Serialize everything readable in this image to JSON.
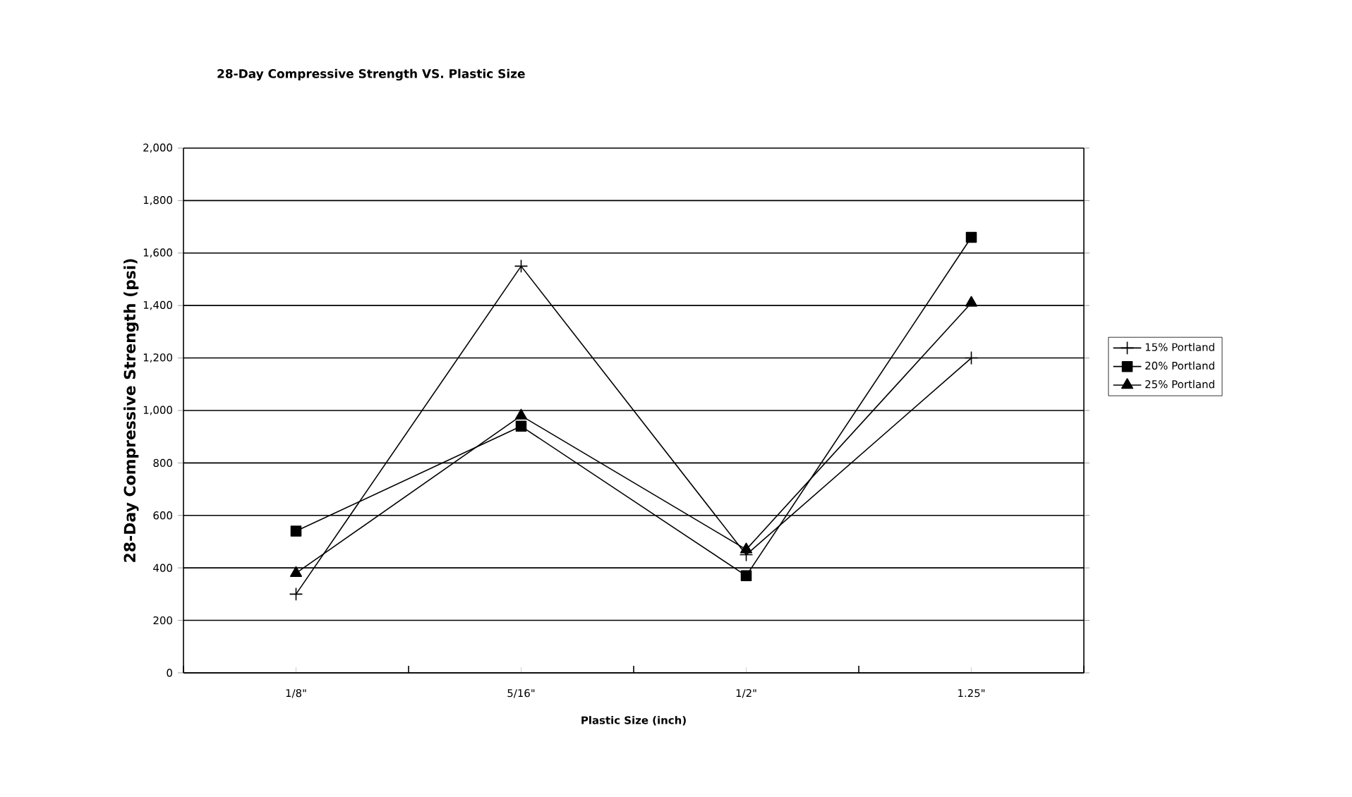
{
  "chart_data": {
    "type": "line",
    "title": "28-Day Compressive Strength VS. Plastic Size",
    "xlabel": "Plastic Size (inch)",
    "ylabel": "28-Day Compressive Strength (psi)",
    "categories": [
      "1/8\"",
      "5/16\"",
      "1/2\"",
      "1.25\""
    ],
    "series": [
      {
        "name": "15% Portland",
        "color": "#000000",
        "marker": "cross",
        "values": [
          300,
          1550,
          450,
          1200
        ]
      },
      {
        "name": "20% Portland",
        "color": "#000000",
        "marker": "square",
        "values": [
          540,
          940,
          370,
          1660
        ]
      },
      {
        "name": "25% Portland",
        "color": "#000000",
        "marker": "triangle",
        "values": [
          380,
          980,
          470,
          1410
        ]
      }
    ],
    "ylim": [
      0,
      2000
    ],
    "yticks": [
      0,
      {
        "value": 200,
        "label": "200"
      },
      {
        "value": 400,
        "label": "400"
      },
      {
        "value": 600,
        "label": "600"
      },
      {
        "value": 800,
        "label": "800"
      },
      {
        "value": 1000,
        "label": "1,000"
      },
      {
        "value": 1200,
        "label": "1,200"
      },
      {
        "value": 1400,
        "label": "1,400"
      },
      {
        "value": 1600,
        "label": "1,600"
      },
      {
        "value": 1800,
        "label": "1,800"
      },
      {
        "value": 2000,
        "label": "2,000"
      }
    ],
    "grid": "y",
    "legend": "right",
    "line_style": "solid"
  }
}
